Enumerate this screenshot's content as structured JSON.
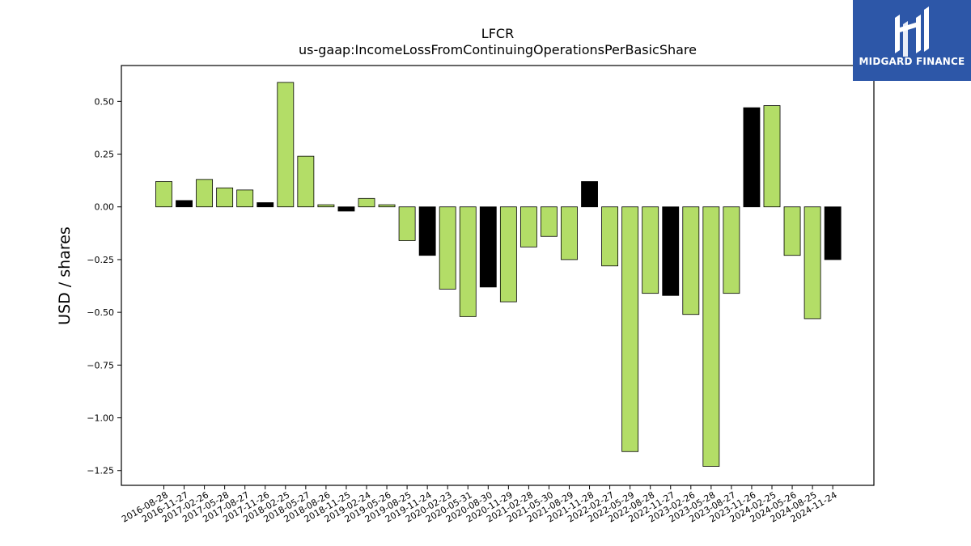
{
  "chart_data": {
    "type": "bar",
    "title": "LFCR",
    "subtitle": "us-gaap:IncomeLossFromContinuingOperationsPerBasicShare",
    "xlabel": "",
    "ylabel": "USD / shares",
    "ylim": [
      -1.32,
      0.67
    ],
    "yticks": [
      -1.25,
      -1.0,
      -0.75,
      -0.5,
      -0.25,
      0.0,
      0.25,
      0.5
    ],
    "ytick_labels": [
      "−1.25",
      "−1.00",
      "−0.75",
      "−0.50",
      "−0.25",
      "0.00",
      "0.25",
      "0.50"
    ],
    "grid": false,
    "colors": {
      "normal": "#b3dd67",
      "highlight": "#000000",
      "edge": "#000000"
    },
    "categories": [
      "2016-08-28",
      "2016-11-27",
      "2017-02-26",
      "2017-05-28",
      "2017-08-27",
      "2017-11-26",
      "2018-02-25",
      "2018-05-27",
      "2018-08-26",
      "2018-11-25",
      "2019-02-24",
      "2019-05-26",
      "2019-08-25",
      "2019-11-24",
      "2020-02-23",
      "2020-05-31",
      "2020-08-30",
      "2020-11-29",
      "2021-02-28",
      "2021-05-30",
      "2021-08-29",
      "2021-11-28",
      "2022-02-27",
      "2022-05-29",
      "2022-08-28",
      "2022-11-27",
      "2023-02-26",
      "2023-05-28",
      "2023-08-27",
      "2023-11-26",
      "2024-02-25",
      "2024-05-26",
      "2024-08-25",
      "2024-11-24"
    ],
    "values": [
      0.12,
      0.03,
      0.13,
      0.09,
      0.08,
      0.02,
      0.59,
      0.24,
      0.01,
      -0.02,
      0.04,
      0.01,
      -0.16,
      -0.23,
      -0.39,
      -0.52,
      -0.38,
      -0.45,
      -0.19,
      -0.14,
      -0.25,
      0.12,
      -0.28,
      -1.16,
      -0.41,
      -0.42,
      -0.51,
      -1.23,
      -0.41,
      0.47,
      0.48,
      -0.23,
      -0.53,
      -0.25
    ],
    "highlighted": [
      false,
      true,
      false,
      false,
      false,
      true,
      false,
      false,
      false,
      true,
      false,
      false,
      false,
      true,
      false,
      false,
      true,
      false,
      false,
      false,
      false,
      true,
      false,
      false,
      false,
      true,
      false,
      false,
      false,
      true,
      false,
      false,
      false,
      true
    ]
  },
  "logo": {
    "text": "MIDGARD FINANCE",
    "icon": "midgard-logo-icon"
  }
}
